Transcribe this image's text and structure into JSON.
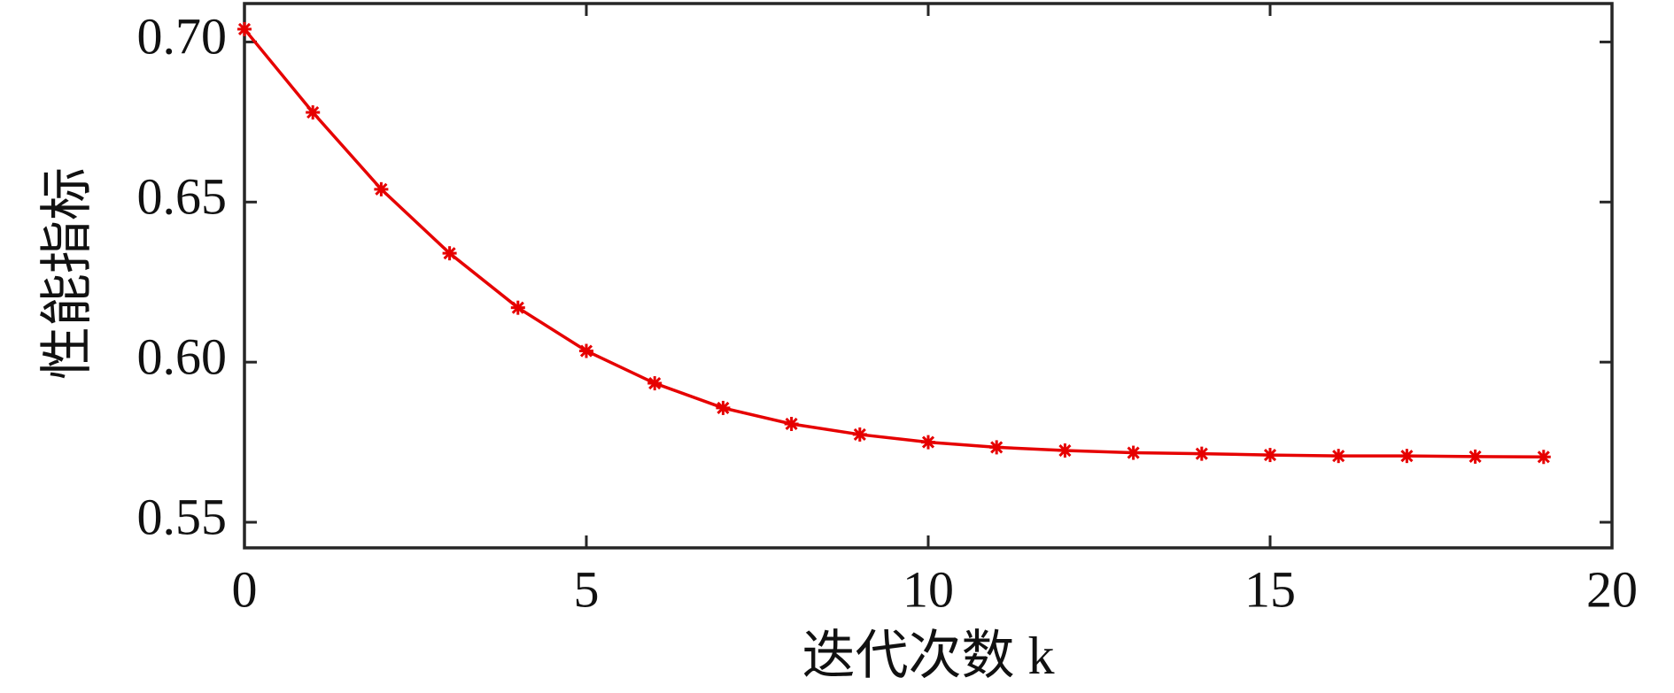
{
  "chart_data": {
    "type": "line",
    "x_label": "迭代次数 k",
    "y_label": "性能指标",
    "x": [
      0,
      1,
      2,
      3,
      4,
      5,
      6,
      7,
      8,
      9,
      10,
      11,
      12,
      13,
      14,
      15,
      16,
      17,
      18,
      19
    ],
    "series": [
      {
        "color": "#e60000",
        "values": [
          0.704,
          0.678,
          0.654,
          0.634,
          0.617,
          0.6035,
          0.5934,
          0.5857,
          0.5807,
          0.5774,
          0.575,
          0.5734,
          0.5724,
          0.5717,
          0.5714,
          0.571,
          0.5707,
          0.5707,
          0.5705,
          0.5704
        ]
      }
    ],
    "xlim": [
      0,
      20
    ],
    "xticks": [
      0,
      5,
      10,
      15,
      20
    ],
    "ylim": [
      0.542,
      0.712
    ],
    "yticks": [
      0.55,
      {
        "value": 0.6,
        "label": "0.60"
      },
      0.65,
      {
        "value": 0.7,
        "label": "0.70"
      }
    ],
    "grid": false
  }
}
